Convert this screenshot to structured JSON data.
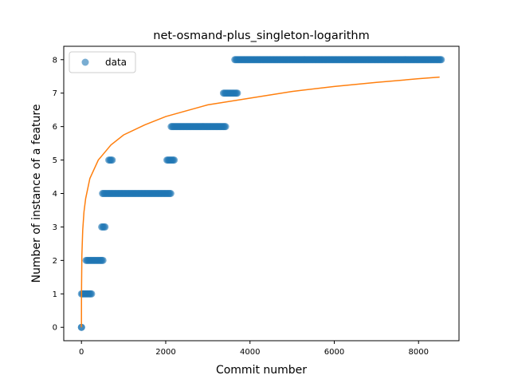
{
  "chart_data": {
    "type": "scatter",
    "title": "net-osmand-plus_singleton-logarithm",
    "xlabel": "Commit number",
    "ylabel": "Number of instance of a feature",
    "xlim": [
      -420,
      8960
    ],
    "ylim": [
      -0.4,
      8.4
    ],
    "xticks": [
      0,
      2000,
      4000,
      6000,
      8000
    ],
    "yticks": [
      0,
      1,
      2,
      3,
      4,
      5,
      6,
      7,
      8
    ],
    "grid": false,
    "legend": {
      "location": "upper-left",
      "entries": [
        {
          "label": "data",
          "marker": "circle"
        }
      ]
    },
    "series": [
      {
        "name": "data",
        "kind": "scatter",
        "color": "#1f77b4",
        "alpha": 0.6,
        "segments": [
          {
            "x_start": 0,
            "x_end": 2,
            "y": 0
          },
          {
            "x_start": 0,
            "x_end": 240,
            "y": 1
          },
          {
            "x_start": 110,
            "x_end": 510,
            "y": 2
          },
          {
            "x_start": 480,
            "x_end": 560,
            "y": 3
          },
          {
            "x_start": 500,
            "x_end": 2120,
            "y": 4
          },
          {
            "x_start": 650,
            "x_end": 730,
            "y": 5
          },
          {
            "x_start": 2030,
            "x_end": 2200,
            "y": 5
          },
          {
            "x_start": 2130,
            "x_end": 3420,
            "y": 6
          },
          {
            "x_start": 3370,
            "x_end": 3700,
            "y": 7
          },
          {
            "x_start": 3640,
            "x_end": 8540,
            "y": 8
          }
        ]
      },
      {
        "name": "fit",
        "kind": "line",
        "color": "#ff7f0e",
        "points": [
          [
            0,
            0
          ],
          [
            1,
            0.85
          ],
          [
            3,
            1.25
          ],
          [
            10,
            2.15
          ],
          [
            30,
            2.9
          ],
          [
            60,
            3.45
          ],
          [
            100,
            3.85
          ],
          [
            200,
            4.45
          ],
          [
            400,
            5.0
          ],
          [
            700,
            5.45
          ],
          [
            1000,
            5.75
          ],
          [
            1500,
            6.05
          ],
          [
            2000,
            6.3
          ],
          [
            3000,
            6.65
          ],
          [
            4000,
            6.85
          ],
          [
            5000,
            7.05
          ],
          [
            6000,
            7.2
          ],
          [
            7000,
            7.32
          ],
          [
            8000,
            7.43
          ],
          [
            8500,
            7.48
          ]
        ]
      }
    ]
  }
}
